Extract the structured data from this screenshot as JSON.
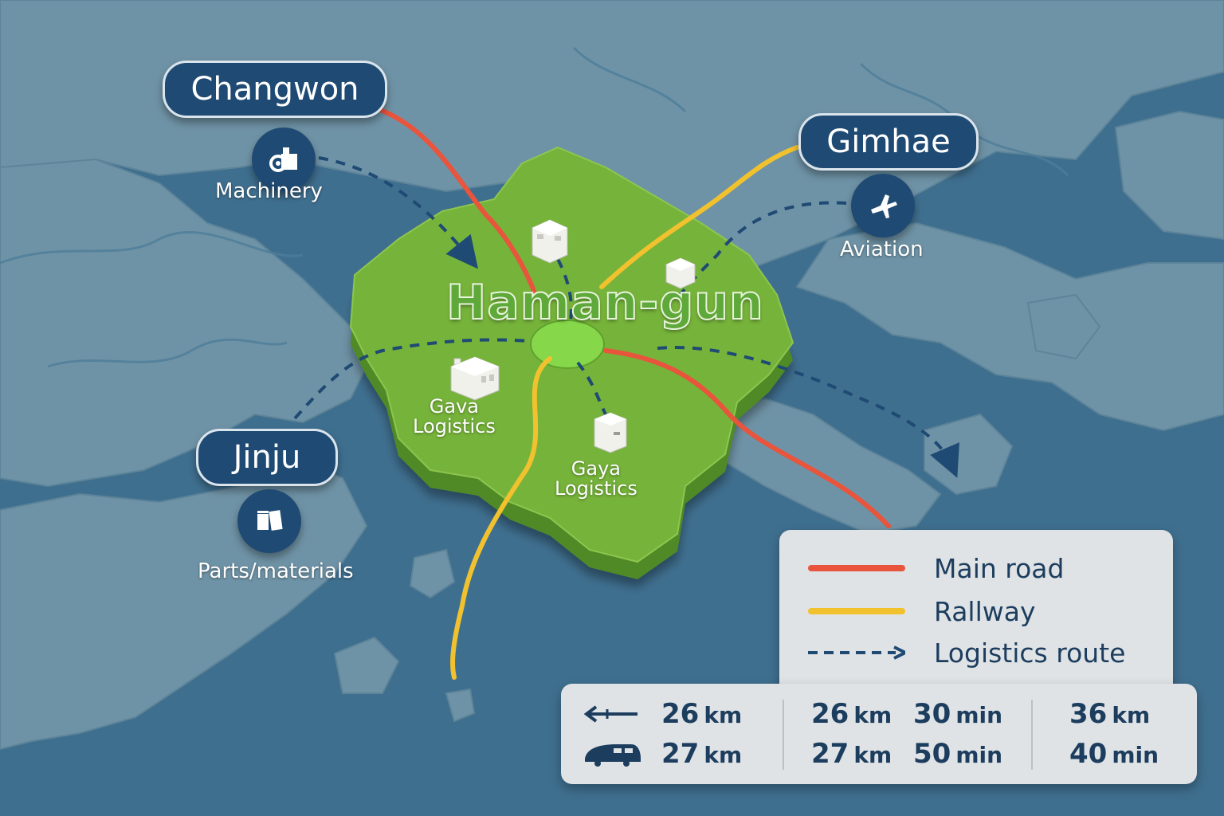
{
  "region": {
    "title": "Haman-gun"
  },
  "cities": [
    {
      "name": "Changwon",
      "sector": "Machinery",
      "icon": "machinery-icon"
    },
    {
      "name": "Gimhae",
      "sector": "Aviation",
      "icon": "airplane-icon"
    },
    {
      "name": "Jinju",
      "sector": "Parts/materials",
      "icon": "parts-icon"
    }
  ],
  "map_labels": {
    "gava": "Gava\nLogistics",
    "gaya": "Gaya\nLogistics"
  },
  "legend": [
    {
      "label": "Main road",
      "color": "#e8543c",
      "style": "solid"
    },
    {
      "label": "Rallway",
      "color": "#f2c12e",
      "style": "solid"
    },
    {
      "label": "Logistics route",
      "color": "#1f4a73",
      "style": "dashed-arrow"
    }
  ],
  "distances": {
    "road_icon": "road-arrow-icon",
    "train_icon": "train-icon",
    "col1": {
      "road": {
        "value": "26",
        "unit": "km"
      },
      "rail": {
        "value": "27",
        "unit": "km"
      }
    },
    "col2": {
      "road": [
        {
          "value": "26",
          "unit": "km"
        },
        {
          "value": "30",
          "unit": "min"
        }
      ],
      "rail": [
        {
          "value": "27",
          "unit": "km"
        },
        {
          "value": "50",
          "unit": "min"
        }
      ]
    },
    "col3": {
      "road": {
        "value": "36",
        "unit": "km"
      },
      "rail": {
        "value": "40",
        "unit": "min"
      }
    }
  },
  "colors": {
    "sea": "#3f6f8f",
    "land": "#6f93a6",
    "region": "#76b33a",
    "pill": "#1f4a73",
    "panel": "#dfe3e6"
  }
}
